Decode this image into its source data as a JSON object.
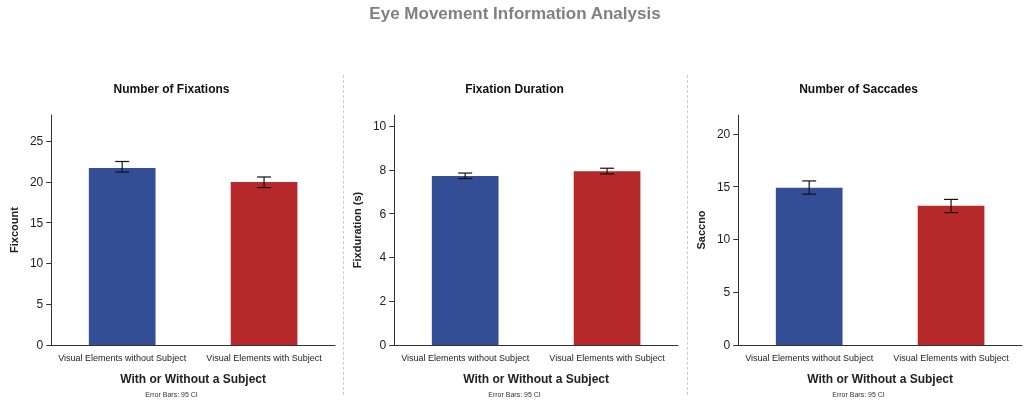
{
  "chart_data": [
    {
      "type": "bar",
      "title": "Number of Fixations",
      "xlabel": "With or Without a Subject",
      "ylabel": "Fixcount",
      "annotations": [
        "Eye Movement Information Analysis",
        "Error Bars: 95 CI"
      ],
      "categories": [
        "Visual Elements without Subject",
        "Visual Elements with Subject"
      ],
      "values": [
        21.7,
        20.0
      ],
      "colors": [
        "#344e96",
        "#b6292a"
      ],
      "errors": [
        [
          21.2,
          22.5
        ],
        [
          19.3,
          20.6
        ]
      ],
      "ylim": [
        0,
        28.2
      ],
      "yticks": [
        0,
        5,
        10,
        15,
        20,
        25
      ],
      "grid": false
    },
    {
      "type": "bar",
      "title": "Fixation Duration",
      "xlabel": "With or Without a Subject",
      "ylabel": "Fixduration (s)",
      "annotations": [
        "Error Bars: 95 CI"
      ],
      "categories": [
        "Visual Elements without Subject",
        "Visual Elements with Subject"
      ],
      "values": [
        7.72,
        7.93
      ],
      "colors": [
        "#344e96",
        "#b6292a"
      ],
      "errors": [
        [
          7.6,
          7.85
        ],
        [
          7.81,
          8.07
        ]
      ],
      "ylim": [
        0,
        10.5
      ],
      "yticks": [
        0,
        2,
        4,
        6,
        8,
        10
      ],
      "grid": false
    },
    {
      "type": "bar",
      "title": "Number of Saccades",
      "xlabel": "With or Without a Subject",
      "ylabel": "Saccno",
      "annotations": [
        "Error Bars: 95 CI"
      ],
      "categories": [
        "Visual Elements without Subject",
        "Visual Elements with Subject"
      ],
      "values": [
        14.9,
        13.2
      ],
      "colors": [
        "#344e96",
        "#b6292a"
      ],
      "errors": [
        [
          14.3,
          15.55
        ],
        [
          12.55,
          13.8
        ]
      ],
      "ylim": [
        0,
        21.8
      ],
      "yticks": [
        0,
        5,
        10,
        15,
        20
      ],
      "grid": false
    }
  ]
}
